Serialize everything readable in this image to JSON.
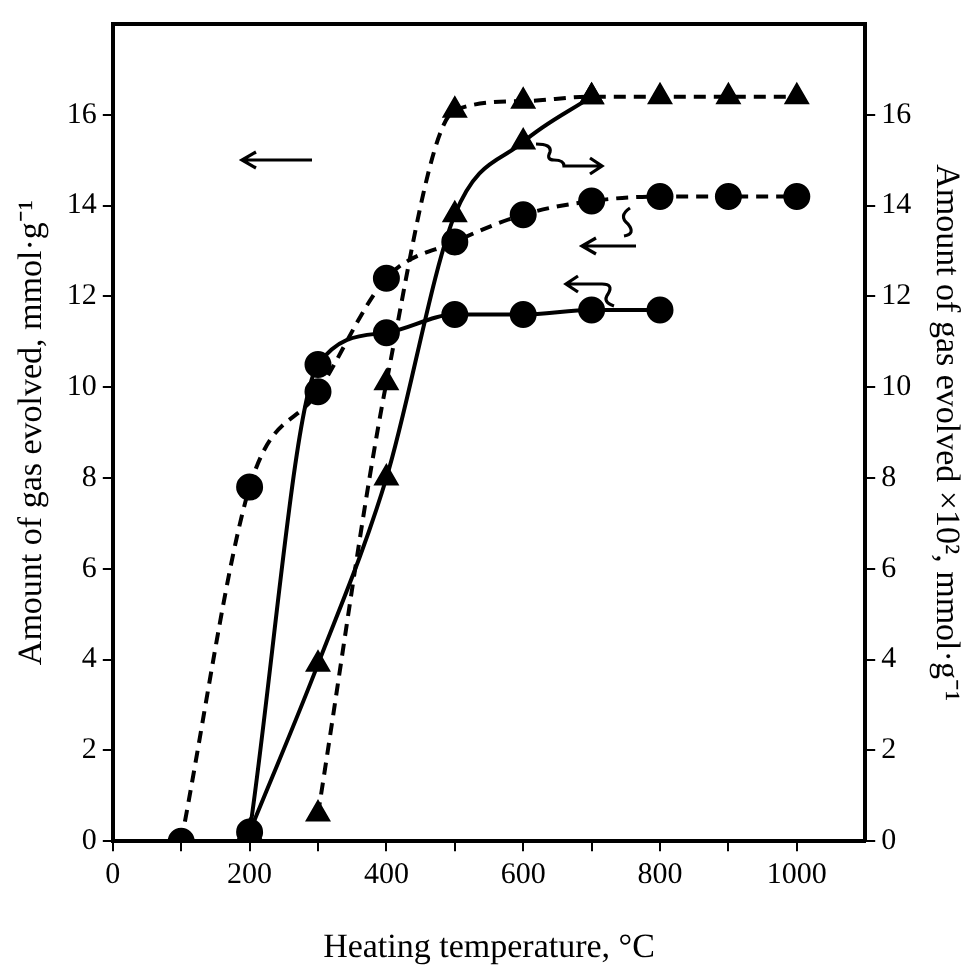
{
  "chart_data": {
    "type": "line",
    "xlabel": "Heating temperature, °C",
    "ylabel": "Amount of gas evolved, mmol·g⁻¹",
    "y2label": "Amount of gas evolved ×10², mmol·g⁻¹",
    "xlim": [
      0,
      1100
    ],
    "xticks": [
      0,
      {
        "value": 100,
        "label": null
      },
      200,
      {
        "value": 300,
        "label": null
      },
      400,
      {
        "value": 500,
        "label": null
      },
      600,
      {
        "value": 700,
        "label": null
      },
      800,
      {
        "value": 900,
        "label": null
      },
      1000
    ],
    "ylim": [
      0,
      18
    ],
    "yticks": [
      0,
      2,
      4,
      6,
      8,
      10,
      12,
      14,
      16
    ],
    "y2lim": [
      0,
      18
    ],
    "y2ticks": [
      0,
      2,
      4,
      6,
      8,
      10,
      12,
      14,
      16
    ],
    "grid": false,
    "legend": false,
    "series": [
      {
        "color": "#000000",
        "marker": "circle",
        "line_style": "dashed",
        "x": [
          100,
          200,
          300,
          400,
          500,
          600,
          700,
          800,
          900,
          1000
        ],
        "values": [
          0,
          7.8,
          9.9,
          12.4,
          13.2,
          13.8,
          14.1,
          14.2,
          14.2,
          14.2
        ]
      },
      {
        "color": "#000000",
        "marker": "circle",
        "line_style": "solid",
        "x": [
          200,
          300,
          400,
          500,
          600,
          700,
          800
        ],
        "values": [
          0.2,
          10.5,
          11.2,
          11.6,
          11.6,
          11.7,
          11.7
        ]
      },
      {
        "color": "#000000",
        "marker": "triangle",
        "line_style": "dashed",
        "x": [
          300,
          400,
          500,
          600,
          700,
          800,
          900,
          1000
        ],
        "values": [
          0.6,
          10.1,
          16.1,
          16.3,
          16.4,
          16.4,
          16.4,
          16.4
        ]
      },
      {
        "color": "#000000",
        "marker": "triangle",
        "line_style": "solid",
        "axis": "y2",
        "x": [
          200,
          300,
          400,
          500,
          600,
          700
        ],
        "values": [
          0.2,
          3.9,
          8.0,
          13.8,
          15.4,
          16.4
        ]
      }
    ]
  }
}
